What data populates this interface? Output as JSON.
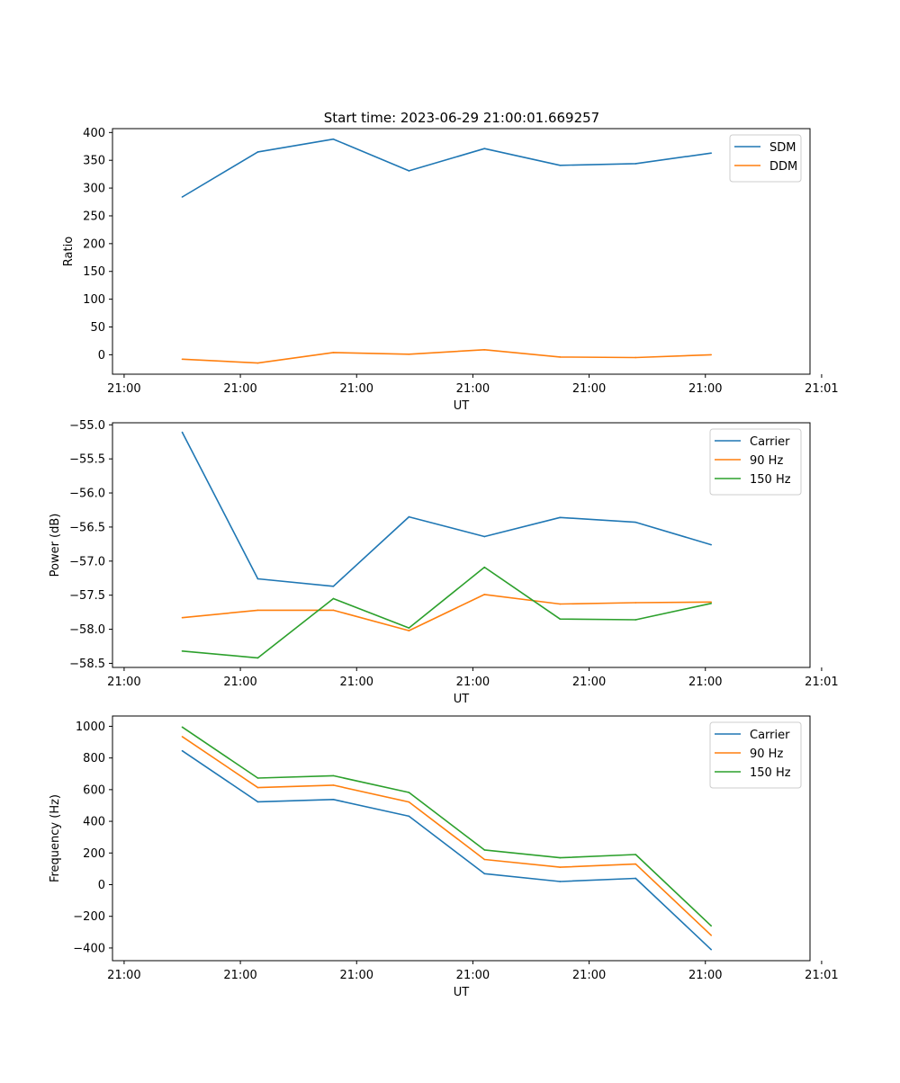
{
  "figure_title": "Start time: 2023-06-29 21:00:01.669257",
  "colors": {
    "blue": "#1f77b4",
    "orange": "#ff7f0e",
    "green": "#2ca02c"
  },
  "chart_data": [
    {
      "type": "line",
      "title": "",
      "xlabel": "UT",
      "ylabel": "Ratio",
      "x": [
        0.5,
        1.15,
        1.8,
        2.45,
        3.1,
        3.75,
        4.4,
        5.05
      ],
      "xlim": [
        -0.1,
        5.9
      ],
      "ylim": [
        -35,
        407
      ],
      "x_ticks": [
        0,
        1,
        2,
        3,
        4,
        5,
        6
      ],
      "x_tick_labels": [
        "21:00",
        "21:00",
        "21:00",
        "21:00",
        "21:00",
        "21:00",
        "21:01"
      ],
      "y_ticks": [
        0,
        50,
        100,
        150,
        200,
        250,
        300,
        350,
        400
      ],
      "y_tick_labels": [
        "0",
        "50",
        "100",
        "150",
        "200",
        "250",
        "300",
        "350",
        "400"
      ],
      "legend_position": "top-right",
      "series": [
        {
          "name": "SDM",
          "color": "#1f77b4",
          "values": [
            284,
            365,
            388,
            331,
            371,
            341,
            344,
            363
          ]
        },
        {
          "name": "DDM",
          "color": "#ff7f0e",
          "values": [
            -8,
            -15,
            4,
            1,
            9,
            -4,
            -5,
            0
          ]
        }
      ]
    },
    {
      "type": "line",
      "title": "",
      "xlabel": "UT",
      "ylabel": "Power (dB)",
      "x": [
        0.5,
        1.15,
        1.8,
        2.45,
        3.1,
        3.75,
        4.4,
        5.05
      ],
      "xlim": [
        -0.1,
        5.9
      ],
      "ylim": [
        -58.56,
        -54.97
      ],
      "x_ticks": [
        0,
        1,
        2,
        3,
        4,
        5,
        6
      ],
      "x_tick_labels": [
        "21:00",
        "21:00",
        "21:00",
        "21:00",
        "21:00",
        "21:00",
        "21:01"
      ],
      "y_ticks": [
        -55.0,
        -55.5,
        -56.0,
        -56.5,
        -57.0,
        -57.5,
        -58.0,
        -58.5
      ],
      "y_tick_labels": [
        "−55.0",
        "−55.5",
        "−56.0",
        "−56.5",
        "−57.0",
        "−57.5",
        "−58.0",
        "−58.5"
      ],
      "legend_position": "top-right",
      "series": [
        {
          "name": "Carrier",
          "color": "#1f77b4",
          "values": [
            -55.11,
            -57.26,
            -57.37,
            -56.35,
            -56.64,
            -56.36,
            -56.43,
            -56.76
          ]
        },
        {
          "name": "90 Hz",
          "color": "#ff7f0e",
          "values": [
            -57.83,
            -57.72,
            -57.72,
            -58.02,
            -57.49,
            -57.63,
            -57.61,
            -57.6
          ]
        },
        {
          "name": "150 Hz",
          "color": "#2ca02c",
          "values": [
            -58.32,
            -58.42,
            -57.55,
            -57.98,
            -57.09,
            -57.85,
            -57.86,
            -57.62
          ]
        }
      ]
    },
    {
      "type": "line",
      "title": "",
      "xlabel": "UT",
      "ylabel": "Frequency (Hz)",
      "x": [
        0.5,
        1.15,
        1.8,
        2.45,
        3.1,
        3.75,
        4.4,
        5.05
      ],
      "xlim": [
        -0.1,
        5.9
      ],
      "ylim": [
        -480,
        1065
      ],
      "x_ticks": [
        0,
        1,
        2,
        3,
        4,
        5,
        6
      ],
      "x_tick_labels": [
        "21:00",
        "21:00",
        "21:00",
        "21:00",
        "21:00",
        "21:00",
        "21:01"
      ],
      "y_ticks": [
        -400,
        -200,
        0,
        200,
        400,
        600,
        800,
        1000
      ],
      "y_tick_labels": [
        "−400",
        "−200",
        "0",
        "200",
        "400",
        "600",
        "800",
        "1000"
      ],
      "legend_position": "top-right",
      "series": [
        {
          "name": "Carrier",
          "color": "#1f77b4",
          "values": [
            845,
            523,
            538,
            432,
            69,
            20,
            40,
            -410
          ]
        },
        {
          "name": "90 Hz",
          "color": "#ff7f0e",
          "values": [
            935,
            613,
            628,
            522,
            159,
            110,
            130,
            -320
          ]
        },
        {
          "name": "150 Hz",
          "color": "#2ca02c",
          "values": [
            995,
            673,
            688,
            582,
            219,
            170,
            190,
            -260
          ]
        }
      ]
    }
  ]
}
